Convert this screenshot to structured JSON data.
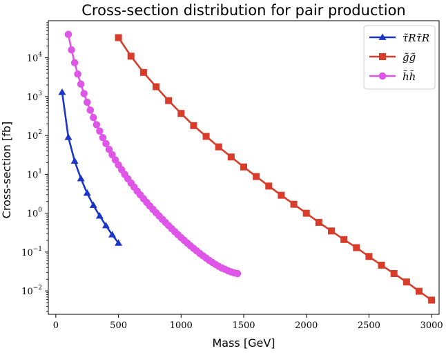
{
  "chart_data": {
    "type": "line",
    "title": "Cross-section distribution for pair production",
    "xlabel": "Mass [GeV]",
    "ylabel": "Cross-section [fb]",
    "xlim": [
      -60,
      3060
    ],
    "ylim": [
      0.0025,
      90000
    ],
    "yscale": "log",
    "grid": false,
    "legend_position": "top-right",
    "x_ticks": [
      0,
      500,
      1000,
      1500,
      2000,
      2500,
      3000
    ],
    "y_ticks": [
      {
        "value": 0.01,
        "base": "10",
        "exp": "−2"
      },
      {
        "value": 0.1,
        "base": "10",
        "exp": "−1"
      },
      {
        "value": 1,
        "base": "10",
        "exp": "0"
      },
      {
        "value": 10,
        "base": "10",
        "exp": "1"
      },
      {
        "value": 100,
        "base": "10",
        "exp": "2"
      },
      {
        "value": 1000,
        "base": "10",
        "exp": "3"
      },
      {
        "value": 10000,
        "base": "10",
        "exp": "4"
      }
    ],
    "series": [
      {
        "name": "τ̃Rτ̃R",
        "marker": "triangle",
        "color": "#1a35c8",
        "x": [
          50,
          100,
          150,
          200,
          250,
          300,
          350,
          400,
          450,
          500
        ],
        "y": [
          1300,
          90,
          22,
          7.8,
          3.3,
          1.6,
          0.85,
          0.48,
          0.28,
          0.17
        ]
      },
      {
        "name": "g̃g̃",
        "marker": "square",
        "color": "#d83c2a",
        "x": [
          500,
          600,
          700,
          800,
          900,
          1000,
          1100,
          1200,
          1300,
          1400,
          1500,
          1600,
          1700,
          1800,
          1900,
          2000,
          2100,
          2200,
          2300,
          2400,
          2500,
          2600,
          2700,
          2800,
          2900,
          3000
        ],
        "y": [
          33000,
          11000,
          4200,
          1800,
          790,
          370,
          180,
          95,
          51,
          28,
          15.5,
          8.8,
          5.0,
          2.9,
          1.7,
          1.0,
          0.58,
          0.35,
          0.21,
          0.13,
          0.077,
          0.046,
          0.028,
          0.017,
          0.0098,
          0.0058
        ]
      },
      {
        "name": "h̃h̃",
        "marker": "circle",
        "color": "#de55e8",
        "x": [
          100,
          125,
          150,
          175,
          200,
          225,
          250,
          275,
          300,
          325,
          350,
          375,
          400,
          425,
          450,
          475,
          500,
          525,
          550,
          575,
          600,
          625,
          650,
          675,
          700,
          725,
          750,
          775,
          800,
          825,
          850,
          875,
          900,
          925,
          950,
          975,
          1000,
          1025,
          1050,
          1075,
          1100,
          1125,
          1150,
          1175,
          1200,
          1225,
          1250,
          1275,
          1300,
          1325,
          1350,
          1375,
          1400,
          1425,
          1450
        ],
        "y": [
          40000,
          16000,
          7500,
          3800,
          2100,
          1200,
          720,
          450,
          290,
          190,
          130,
          88,
          62,
          44,
          32,
          23.5,
          17.5,
          13.2,
          10,
          7.7,
          6,
          4.7,
          3.7,
          2.95,
          2.36,
          1.9,
          1.54,
          1.26,
          1.03,
          0.85,
          0.7,
          0.58,
          0.48,
          0.4,
          0.335,
          0.28,
          0.236,
          0.2,
          0.17,
          0.145,
          0.124,
          0.107,
          0.092,
          0.08,
          0.07,
          0.061,
          0.054,
          0.048,
          0.043,
          0.039,
          0.036,
          0.033,
          0.031,
          0.029,
          0.028
        ]
      }
    ]
  }
}
